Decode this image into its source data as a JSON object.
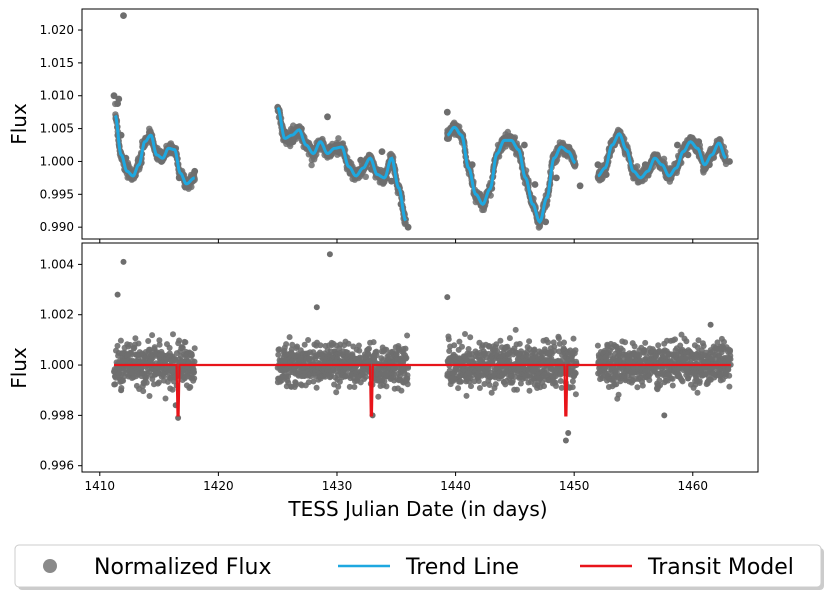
{
  "chart_data": [
    {
      "type": "scatter",
      "panel": "top",
      "title": "",
      "xlabel": "",
      "ylabel": "Flux",
      "xlim": [
        1408.5,
        1465.5
      ],
      "ylim": [
        0.9882,
        1.0232
      ],
      "yticks": [
        "0.990",
        "0.995",
        "1.000",
        "1.005",
        "1.010",
        "1.015",
        "1.020"
      ],
      "ytick_values": [
        0.99,
        0.995,
        1.0,
        1.005,
        1.01,
        1.015,
        1.02
      ],
      "series": [
        {
          "name": "Normalized Flux",
          "kind": "points",
          "color": "#6e6e6e",
          "x": [
            1411.2,
            1411.5,
            1411.8,
            1412.2,
            1412.8,
            1413.5,
            1414.3,
            1415.2,
            1416.0,
            1416.7,
            1417.4,
            1418.0,
            1425.0,
            1425.6,
            1426.3,
            1427.0,
            1427.8,
            1428.6,
            1429.5,
            1430.3,
            1431.1,
            1432.0,
            1432.9,
            1433.8,
            1434.6,
            1435.4,
            1436.0,
            1439.3,
            1439.9,
            1440.6,
            1441.4,
            1442.3,
            1443.2,
            1444.0,
            1444.9,
            1445.8,
            1446.7,
            1447.6,
            1448.5,
            1449.3,
            1450.0,
            1452.0,
            1452.7,
            1453.4,
            1454.2,
            1455.1,
            1456.0,
            1456.9,
            1457.8,
            1458.7,
            1459.6,
            1460.5,
            1461.4,
            1462.2,
            1463.1,
            1412.0,
            1411.6,
            1429.2,
            1439.3,
            1450.5
          ],
          "y": [
            1.01,
            1.0088,
            1.004,
            1.0005,
            0.9978,
            0.9998,
            1.004,
            1.0,
            1.0018,
            0.9975,
            0.9963,
            0.9985,
            1.0082,
            1.0045,
            1.003,
            1.005,
            1.0018,
            1.003,
            1.001,
            1.0025,
            0.9982,
            1.0002,
            0.9988,
            1.0015,
            0.997,
            0.9935,
            0.99,
            1.0035,
            1.0052,
            1.004,
            0.9995,
            0.994,
            0.9985,
            1.003,
            1.0035,
            1.0025,
            0.9965,
            0.9908,
            0.9975,
            1.002,
            0.9995,
            0.9995,
            0.998,
            1.0025,
            1.0025,
            0.9975,
            0.9995,
            1.0005,
            0.9975,
            1.0025,
            1.001,
            1.003,
            0.9995,
            1.0025,
            1.0,
            1.0222,
            1.0095,
            1.0068,
            1.0075,
            0.9963
          ]
        },
        {
          "name": "Trend Line",
          "kind": "line",
          "color": "#1ea8e0",
          "x": [
            1411.3,
            1411.8,
            1412.3,
            1412.8,
            1413.3,
            1413.8,
            1414.3,
            1414.8,
            1415.3,
            1415.8,
            1416.3,
            1416.8,
            1417.3,
            1418.0
          ],
          "y": [
            1.007,
            1.001,
            0.9985,
            0.9978,
            0.9995,
            1.003,
            1.004,
            1.001,
            1.0005,
            1.002,
            1.0018,
            0.9982,
            0.9966,
            0.9975
          ],
          "x2": [
            1425.0,
            1425.6,
            1426.2,
            1426.8,
            1427.4,
            1428.0,
            1428.6,
            1429.2,
            1429.8,
            1430.4,
            1431.0,
            1431.6,
            1432.2,
            1432.8,
            1433.4,
            1434.0,
            1434.6,
            1435.2,
            1435.8
          ],
          "y2": [
            1.0082,
            1.0035,
            1.004,
            1.0048,
            1.0025,
            1.0012,
            1.003,
            1.0012,
            1.002,
            1.0022,
            0.9992,
            0.9978,
            0.999,
            1.0005,
            0.998,
            0.9975,
            1.0005,
            0.996,
            0.991
          ],
          "x3": [
            1439.3,
            1439.9,
            1440.5,
            1441.1,
            1441.7,
            1442.3,
            1442.9,
            1443.5,
            1444.1,
            1444.7,
            1445.3,
            1445.9,
            1446.5,
            1447.1,
            1447.7,
            1448.3,
            1448.9,
            1449.5,
            1450.1
          ],
          "y3": [
            1.004,
            1.0052,
            1.004,
            0.999,
            0.995,
            0.9935,
            0.9958,
            1.0012,
            1.0032,
            1.0032,
            1.0018,
            0.9975,
            0.9935,
            0.9908,
            0.9945,
            1.0005,
            1.0022,
            1.0015,
            0.9998
          ],
          "x4": [
            1452.0,
            1452.6,
            1453.2,
            1453.8,
            1454.4,
            1455.0,
            1455.6,
            1456.2,
            1456.8,
            1457.4,
            1458.0,
            1458.6,
            1459.2,
            1459.8,
            1460.4,
            1461.0,
            1461.6,
            1462.2,
            1462.8
          ],
          "y4": [
            0.9978,
            0.999,
            1.0025,
            1.0042,
            1.0018,
            0.9985,
            0.9975,
            0.9985,
            1.0005,
            0.9995,
            0.9978,
            0.999,
            1.0015,
            1.003,
            1.002,
            0.9995,
            1.001,
            1.0028,
            1.0005
          ]
        }
      ]
    },
    {
      "type": "scatter",
      "panel": "bottom",
      "title": "",
      "xlabel": "TESS Julian Date (in days)",
      "ylabel": "Flux",
      "xlim": [
        1408.5,
        1465.5
      ],
      "ylim": [
        0.99575,
        1.00485
      ],
      "xticks": [
        "1410",
        "1420",
        "1430",
        "1440",
        "1450",
        "1460"
      ],
      "xtick_values": [
        1410,
        1420,
        1430,
        1440,
        1450,
        1460
      ],
      "yticks": [
        "0.996",
        "0.998",
        "1.000",
        "1.002",
        "1.004"
      ],
      "ytick_values": [
        0.996,
        0.998,
        1.0,
        1.002,
        1.004
      ],
      "series": [
        {
          "name": "Normalized Flux",
          "kind": "points",
          "color": "#6e6e6e",
          "segments": [
            [
              1411.2,
              1418.0
            ],
            [
              1425.0,
              1436.0
            ],
            [
              1439.3,
              1450.2
            ],
            [
              1452.0,
              1463.2
            ]
          ],
          "outliers_x": [
            1411.5,
            1412.0,
            1416.6,
            1429.4,
            1428.3,
            1439.3,
            1433.0,
            1449.3,
            1449.5,
            1457.6,
            1461.5,
            1416.4,
            1411.8
          ],
          "outliers_y": [
            1.0028,
            1.0041,
            0.9979,
            1.0044,
            1.0023,
            1.0027,
            0.998,
            0.997,
            0.9973,
            0.998,
            1.0016,
            0.9984,
            0.999
          ]
        },
        {
          "name": "Transit Model",
          "kind": "line",
          "color": "#e8141a",
          "baseline": 1.0,
          "x_range": [
            1411.2,
            1463.2
          ],
          "transits_x": [
            1416.6,
            1432.9,
            1449.3
          ],
          "transit_depth": 0.998
        }
      ]
    }
  ],
  "legend": {
    "placement": "bottom",
    "entries": [
      {
        "label": "Normalized Flux",
        "marker": "circle",
        "color": "#8a8a8a"
      },
      {
        "label": "Trend Line",
        "marker": "line",
        "color": "#1ea8e0"
      },
      {
        "label": "Transit Model",
        "marker": "line",
        "color": "#e8141a"
      }
    ]
  }
}
